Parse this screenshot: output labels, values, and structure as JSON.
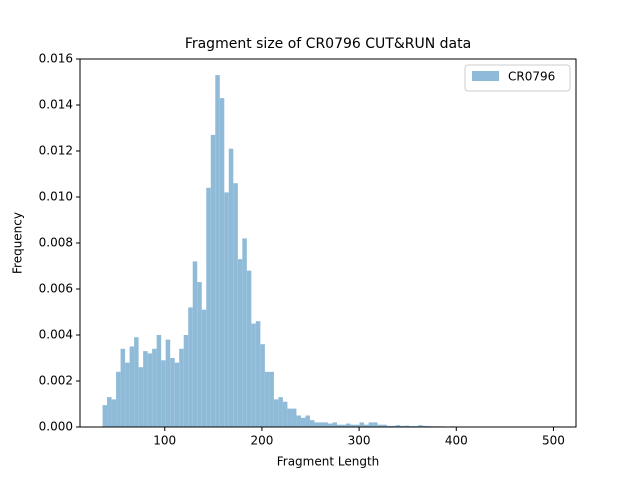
{
  "chart_data": {
    "type": "histogram",
    "title": "Fragment size of CR0796 CUT&RUN data",
    "x_label": "Fragment Length",
    "y_label": "Frequency",
    "bins": [
      36,
      40.64,
      45.28,
      49.92,
      54.56,
      59.2,
      63.84,
      68.48,
      73.12,
      77.76,
      82.4,
      87.04,
      91.68,
      96.32,
      100.96,
      105.6,
      110.24,
      114.88,
      119.52,
      124.16,
      128.8,
      133.44,
      138.08,
      142.72,
      147.36,
      152,
      156.64,
      161.28,
      165.92,
      170.56,
      175.2,
      179.84,
      184.48,
      189.12,
      193.76,
      198.4,
      203.04,
      207.68,
      212.32,
      216.96,
      221.6,
      226.24,
      230.88,
      235.52,
      240.16,
      244.8,
      249.44,
      254.08,
      258.72,
      263.36,
      268,
      272.64,
      277.28,
      281.92,
      286.56,
      291.2,
      295.84,
      300.48,
      305.12,
      309.76,
      314.4,
      319.04,
      323.68,
      328.32,
      332.96,
      337.6,
      342.24,
      346.88,
      351.52,
      356.16,
      360.8,
      365.44,
      370.08,
      374.72,
      379.36,
      384,
      388.64,
      393.28,
      397.92,
      402.56,
      407.2,
      411.84,
      416.48,
      421.12,
      425.76,
      430.4,
      435.04,
      439.68,
      444.32,
      448.96,
      453.6,
      458.24,
      462.88,
      467.52,
      472.16,
      476.8,
      481.44,
      486.08,
      490.72,
      495.36,
      500
    ],
    "series": [
      {
        "name": "CR0796",
        "color": "#8fbbd9",
        "values": [
          0.00095,
          0.0013,
          0.0012,
          0.0024,
          0.0034,
          0.0028,
          0.0035,
          0.0039,
          0.0026,
          0.0033,
          0.0032,
          0.0034,
          0.004,
          0.0029,
          0.0038,
          0.003,
          0.0028,
          0.0034,
          0.004,
          0.0052,
          0.0072,
          0.0063,
          0.0051,
          0.0104,
          0.0127,
          0.0153,
          0.0143,
          0.0102,
          0.0121,
          0.0106,
          0.0073,
          0.0082,
          0.0068,
          0.0045,
          0.0046,
          0.0036,
          0.0024,
          0.0024,
          0.0012,
          0.0013,
          0.0011,
          0.0008,
          0.0008,
          0.0005,
          0.0004,
          0.0005,
          0.0003,
          0.0002,
          0.0002,
          0.0002,
          0.00015,
          0.0002,
          0.0001,
          0.0001,
          0.00015,
          0.0001,
          0.0001,
          0.0002,
          0.0001,
          0.0002,
          0.0002,
          0.0001,
          0.0001,
          5e-05,
          5e-05,
          8e-05,
          5e-05,
          6e-05,
          4e-05,
          4e-05,
          8e-05,
          5e-05,
          4e-05,
          3e-05,
          3e-05,
          3e-05,
          2e-05,
          3e-05,
          2e-05,
          2e-05,
          2e-05,
          1e-05,
          2e-05,
          1e-05,
          1e-05,
          2e-05,
          1e-05,
          1e-05,
          1e-05,
          1e-05,
          1e-05,
          1e-05,
          1e-05,
          1e-05,
          1e-05,
          1e-05,
          1e-05,
          1e-05,
          1e-05,
          1e-05
        ]
      }
    ],
    "xlim": [
      12.8,
      523.2
    ],
    "xticks": [
      100,
      200,
      300,
      400,
      500
    ],
    "ylim": [
      0,
      0.016
    ],
    "yticks": [
      {
        "value": 0,
        "label": "0.000"
      },
      {
        "value": 0.002,
        "label": "0.002"
      },
      {
        "value": 0.004,
        "label": "0.004"
      },
      {
        "value": 0.006,
        "label": "0.006"
      },
      {
        "value": 0.008,
        "label": "0.008"
      },
      {
        "value": 0.01,
        "label": "0.010"
      },
      {
        "value": 0.012,
        "label": "0.012"
      },
      {
        "value": 0.014,
        "label": "0.014"
      },
      {
        "value": 0.016,
        "label": "0.016"
      }
    ],
    "legend": "upper right"
  }
}
